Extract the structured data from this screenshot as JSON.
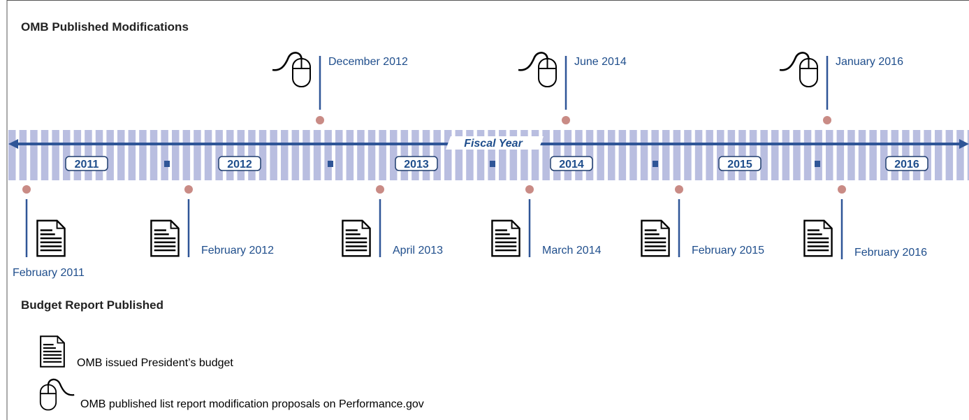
{
  "title": "OMB Published Modifications",
  "axis_label": "Fiscal Year",
  "years": [
    "2011",
    "2012",
    "2013",
    "2014",
    "2015",
    "2016"
  ],
  "modifications": [
    "December 2012",
    "June 2014",
    "January 2016"
  ],
  "budget_section_title": "Budget Report Published",
  "budget_reports": [
    "February 2011",
    "February 2012",
    "April 2013",
    "March 2014",
    "February 2015",
    "February 2016"
  ],
  "legend": [
    "OMB issued President’s budget",
    "OMB published list report modification proposals on Performance.gov"
  ]
}
